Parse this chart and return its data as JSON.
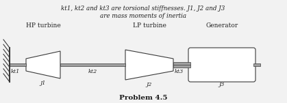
{
  "title_line1": "kt1, kt2 and kt3 are torsional stiffnesses. J1, J2 and J3",
  "title_line2": "are mass moments of inertia",
  "problem_label": "Problem 4.5",
  "bg_color": "#f2f2f2",
  "component_labels": [
    "HP turbine",
    "LP turbine",
    "Generator"
  ],
  "shaft_labels": [
    "kt1",
    "kt2",
    "kt3"
  ],
  "mass_labels": [
    "J1",
    "J2",
    "J3"
  ],
  "line_color": "#3a3a3a",
  "fill_color": "#ffffff",
  "shaft_fill": "#a0a0a0",
  "text_color": "#202020"
}
